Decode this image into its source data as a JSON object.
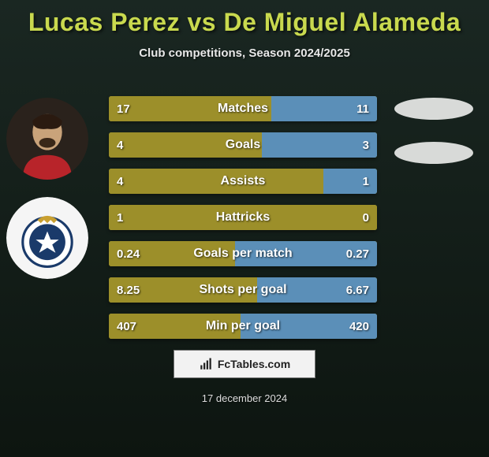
{
  "colors": {
    "bg_gradient_top": "#1a2722",
    "bg_gradient_bottom": "#0d1510",
    "title_color": "#c9d94e",
    "subtitle_color": "#e8e8e8",
    "bar_bg": "#b2a836",
    "bar_left_fill": "#9c8f2a",
    "bar_right_fill": "#5b8fb8",
    "bar_text": "#ffffff",
    "oval_fill": "#d8dad8",
    "brand_bg": "#f2f2f2",
    "brand_text": "#222222",
    "date_color": "#dddddd",
    "avatar1_bg": "#3a3028",
    "avatar2_bg": "#f5f5f5"
  },
  "title": "Lucas Perez vs De Miguel Alameda",
  "subtitle": "Club competitions, Season 2024/2025",
  "date": "17 december 2024",
  "brand": "FcTables.com",
  "stats": [
    {
      "label": "Matches",
      "left_val": "17",
      "right_val": "11",
      "left_pct": 60.7,
      "right_pct": 39.3
    },
    {
      "label": "Goals",
      "left_val": "4",
      "right_val": "3",
      "left_pct": 57.1,
      "right_pct": 42.9
    },
    {
      "label": "Assists",
      "left_val": "4",
      "right_val": "1",
      "left_pct": 80.0,
      "right_pct": 20.0
    },
    {
      "label": "Hattricks",
      "left_val": "1",
      "right_val": "0",
      "left_pct": 100.0,
      "right_pct": 0.0
    },
    {
      "label": "Goals per match",
      "left_val": "0.24",
      "right_val": "0.27",
      "left_pct": 47.1,
      "right_pct": 52.9
    },
    {
      "label": "Shots per goal",
      "left_val": "8.25",
      "right_val": "6.67",
      "left_pct": 55.3,
      "right_pct": 44.7
    },
    {
      "label": "Min per goal",
      "left_val": "407",
      "right_val": "420",
      "left_pct": 49.2,
      "right_pct": 50.8
    }
  ]
}
